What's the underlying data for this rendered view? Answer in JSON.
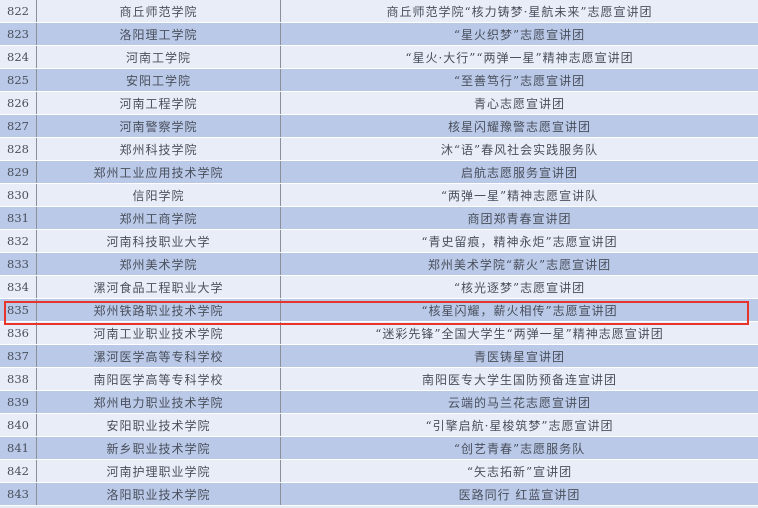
{
  "rows": [
    {
      "no": "822",
      "school": "商丘师范学院",
      "team": "商丘师范学院“核力铸梦·星航未来”志愿宣讲团"
    },
    {
      "no": "823",
      "school": "洛阳理工学院",
      "team": "“星火织梦”志愿宣讲团"
    },
    {
      "no": "824",
      "school": "河南工学院",
      "team": "“星火·大行”“两弹一星”精神志愿宣讲团"
    },
    {
      "no": "825",
      "school": "安阳工学院",
      "team": "“至善笃行”志愿宣讲团"
    },
    {
      "no": "826",
      "school": "河南工程学院",
      "team": "青心志愿宣讲团"
    },
    {
      "no": "827",
      "school": "河南警察学院",
      "team": "核星闪耀豫警志愿宣讲团"
    },
    {
      "no": "828",
      "school": "郑州科技学院",
      "team": "沐“语”春风社会实践服务队"
    },
    {
      "no": "829",
      "school": "郑州工业应用技术学院",
      "team": "启航志愿服务宣讲团"
    },
    {
      "no": "830",
      "school": "信阳学院",
      "team": "“两弹一星”精神志愿宣讲队"
    },
    {
      "no": "831",
      "school": "郑州工商学院",
      "team": "商团郑青春宣讲团"
    },
    {
      "no": "832",
      "school": "河南科技职业大学",
      "team": "“青史留痕，精神永炬”志愿宣讲团"
    },
    {
      "no": "833",
      "school": "郑州美术学院",
      "team": "郑州美术学院“薪火”志愿宣讲团"
    },
    {
      "no": "834",
      "school": "漯河食品工程职业大学",
      "team": "“核光逐梦”志愿宣讲团"
    },
    {
      "no": "835",
      "school": "郑州铁路职业技术学院",
      "team": "“核星闪耀，薪火相传”志愿宣讲团"
    },
    {
      "no": "836",
      "school": "河南工业职业技术学院",
      "team": "“迷彩先锋”全国大学生“两弹一星”精神志愿宣讲团"
    },
    {
      "no": "837",
      "school": "漯河医学高等专科学校",
      "team": "青医铸星宣讲团"
    },
    {
      "no": "838",
      "school": "南阳医学高等专科学校",
      "team": "南阳医专大学生国防预备连宣讲团"
    },
    {
      "no": "839",
      "school": "郑州电力职业技术学院",
      "team": "云端的马兰花志愿宣讲团"
    },
    {
      "no": "840",
      "school": "安阳职业技术学院",
      "team": "“引擎启航·星梭筑梦”志愿宣讲团"
    },
    {
      "no": "841",
      "school": "新乡职业技术学院",
      "team": "“创艺青春”志愿服务队"
    },
    {
      "no": "842",
      "school": "河南护理职业学院",
      "team": "“矢志拓新”宣讲团"
    },
    {
      "no": "843",
      "school": "洛阳职业技术学院",
      "team": "医路同行 红蓝宣讲团"
    }
  ],
  "highlighted_row": "835",
  "colors": {
    "highlight_border": "#e8352b",
    "row_alt": "#b9c9e7",
    "row_plain": "#e8edf7"
  }
}
